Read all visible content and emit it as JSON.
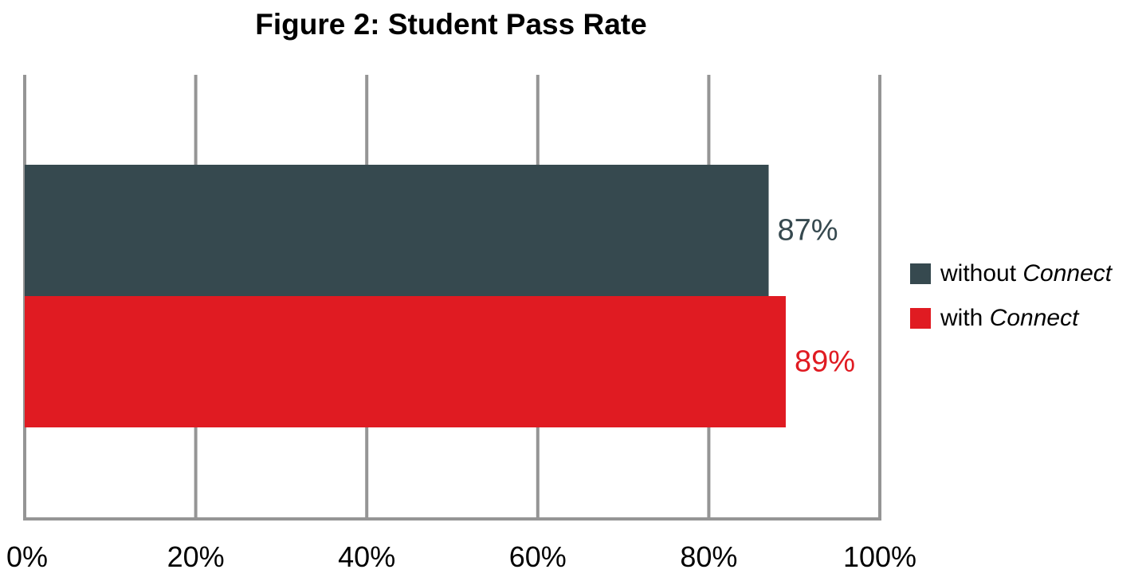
{
  "chart_data": {
    "type": "bar",
    "orientation": "horizontal",
    "title": "Figure 2: Student Pass Rate",
    "xlim": [
      0,
      100
    ],
    "x_ticks": [
      0,
      20,
      40,
      60,
      80,
      100
    ],
    "x_tick_labels": [
      "0%",
      "20%",
      "40%",
      "60%",
      "80%",
      "100%"
    ],
    "grid": true,
    "legend_position": "right",
    "series": [
      {
        "name": "without Connect",
        "name_plain": "without ",
        "name_italic": "Connect",
        "value": 87,
        "label": "87%",
        "color": "#36494f"
      },
      {
        "name": "with Connect",
        "name_plain": "with ",
        "name_italic": "Connect",
        "value": 89,
        "label": "89%",
        "color": "#e01b22"
      }
    ]
  },
  "colors": {
    "grid": "#959595",
    "axis": "#959595"
  }
}
